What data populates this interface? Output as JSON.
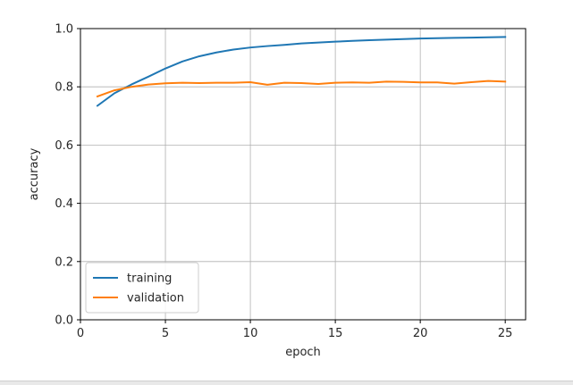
{
  "chart_data": {
    "type": "line",
    "title": "",
    "xlabel": "epoch",
    "ylabel": "accuracy",
    "xlim": [
      0,
      26.2
    ],
    "ylim": [
      0,
      1.0
    ],
    "xticks": [
      0,
      5,
      10,
      15,
      20,
      25
    ],
    "yticks": [
      0.0,
      0.2,
      0.4,
      0.6,
      0.8,
      1.0
    ],
    "ytick_labels": [
      "0.0",
      "0.2",
      "0.4",
      "0.6",
      "0.8",
      "1.0"
    ],
    "grid": true,
    "legend_position": "lower-left",
    "x": [
      1,
      2,
      3,
      4,
      5,
      6,
      7,
      8,
      9,
      10,
      11,
      12,
      13,
      14,
      15,
      16,
      17,
      18,
      19,
      20,
      21,
      22,
      23,
      24,
      25
    ],
    "series": [
      {
        "name": "training",
        "color": "#1f77b4",
        "values": [
          0.735,
          0.778,
          0.808,
          0.835,
          0.863,
          0.887,
          0.905,
          0.918,
          0.928,
          0.935,
          0.94,
          0.944,
          0.949,
          0.952,
          0.955,
          0.958,
          0.96,
          0.962,
          0.964,
          0.966,
          0.967,
          0.968,
          0.969,
          0.97,
          0.971
        ]
      },
      {
        "name": "validation",
        "color": "#ff7f0e",
        "values": [
          0.767,
          0.788,
          0.8,
          0.808,
          0.812,
          0.814,
          0.813,
          0.814,
          0.814,
          0.816,
          0.807,
          0.814,
          0.813,
          0.81,
          0.814,
          0.815,
          0.814,
          0.818,
          0.817,
          0.815,
          0.815,
          0.811,
          0.816,
          0.82,
          0.818
        ]
      }
    ]
  }
}
